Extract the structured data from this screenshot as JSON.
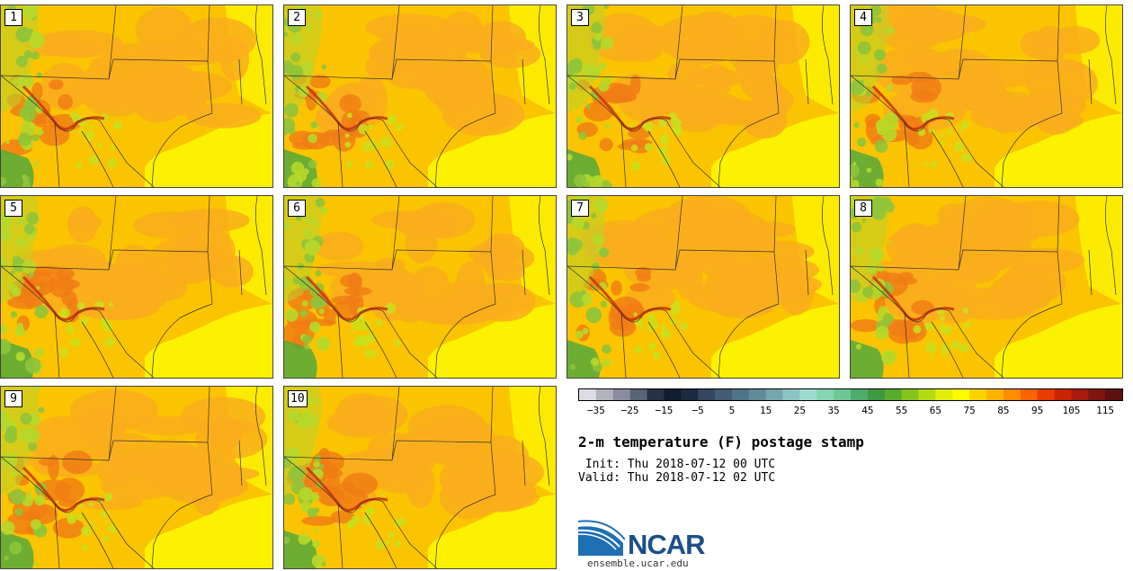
{
  "stamps": [
    {
      "label": "1"
    },
    {
      "label": "2"
    },
    {
      "label": "3"
    },
    {
      "label": "4"
    },
    {
      "label": "5"
    },
    {
      "label": "6"
    },
    {
      "label": "7"
    },
    {
      "label": "8"
    },
    {
      "label": "9"
    },
    {
      "label": "10"
    }
  ],
  "colorbar": {
    "colors": [
      "#dcdce4",
      "#b4b4c0",
      "#8c8ca0",
      "#5a6478",
      "#283246",
      "#101c30",
      "#1c2a40",
      "#34475e",
      "#425c72",
      "#4f7386",
      "#618a9a",
      "#76a6ae",
      "#8cc4c2",
      "#9cdcd0",
      "#86d4b0",
      "#6ec894",
      "#4eac6c",
      "#3e9a3e",
      "#5aac2c",
      "#86c41c",
      "#b4da12",
      "#e0ee0a",
      "#fcfc00",
      "#fcd200",
      "#fcb400",
      "#fc8c00",
      "#f86400",
      "#e83c00",
      "#c82400",
      "#a81c10",
      "#801410",
      "#5c1010"
    ],
    "ticks": [
      -35,
      -25,
      -15,
      -5,
      5,
      15,
      25,
      35,
      45,
      55,
      65,
      75,
      85,
      95,
      105,
      115
    ],
    "min": -40,
    "max": 120
  },
  "title": "2-m temperature (F) postage stamp",
  "init": " Init: Thu 2018-07-12 00 UTC",
  "valid": "Valid: Thu 2018-07-12 02 UTC",
  "logo": {
    "text": "NCAR",
    "url": "ensemble.ucar.edu"
  }
}
